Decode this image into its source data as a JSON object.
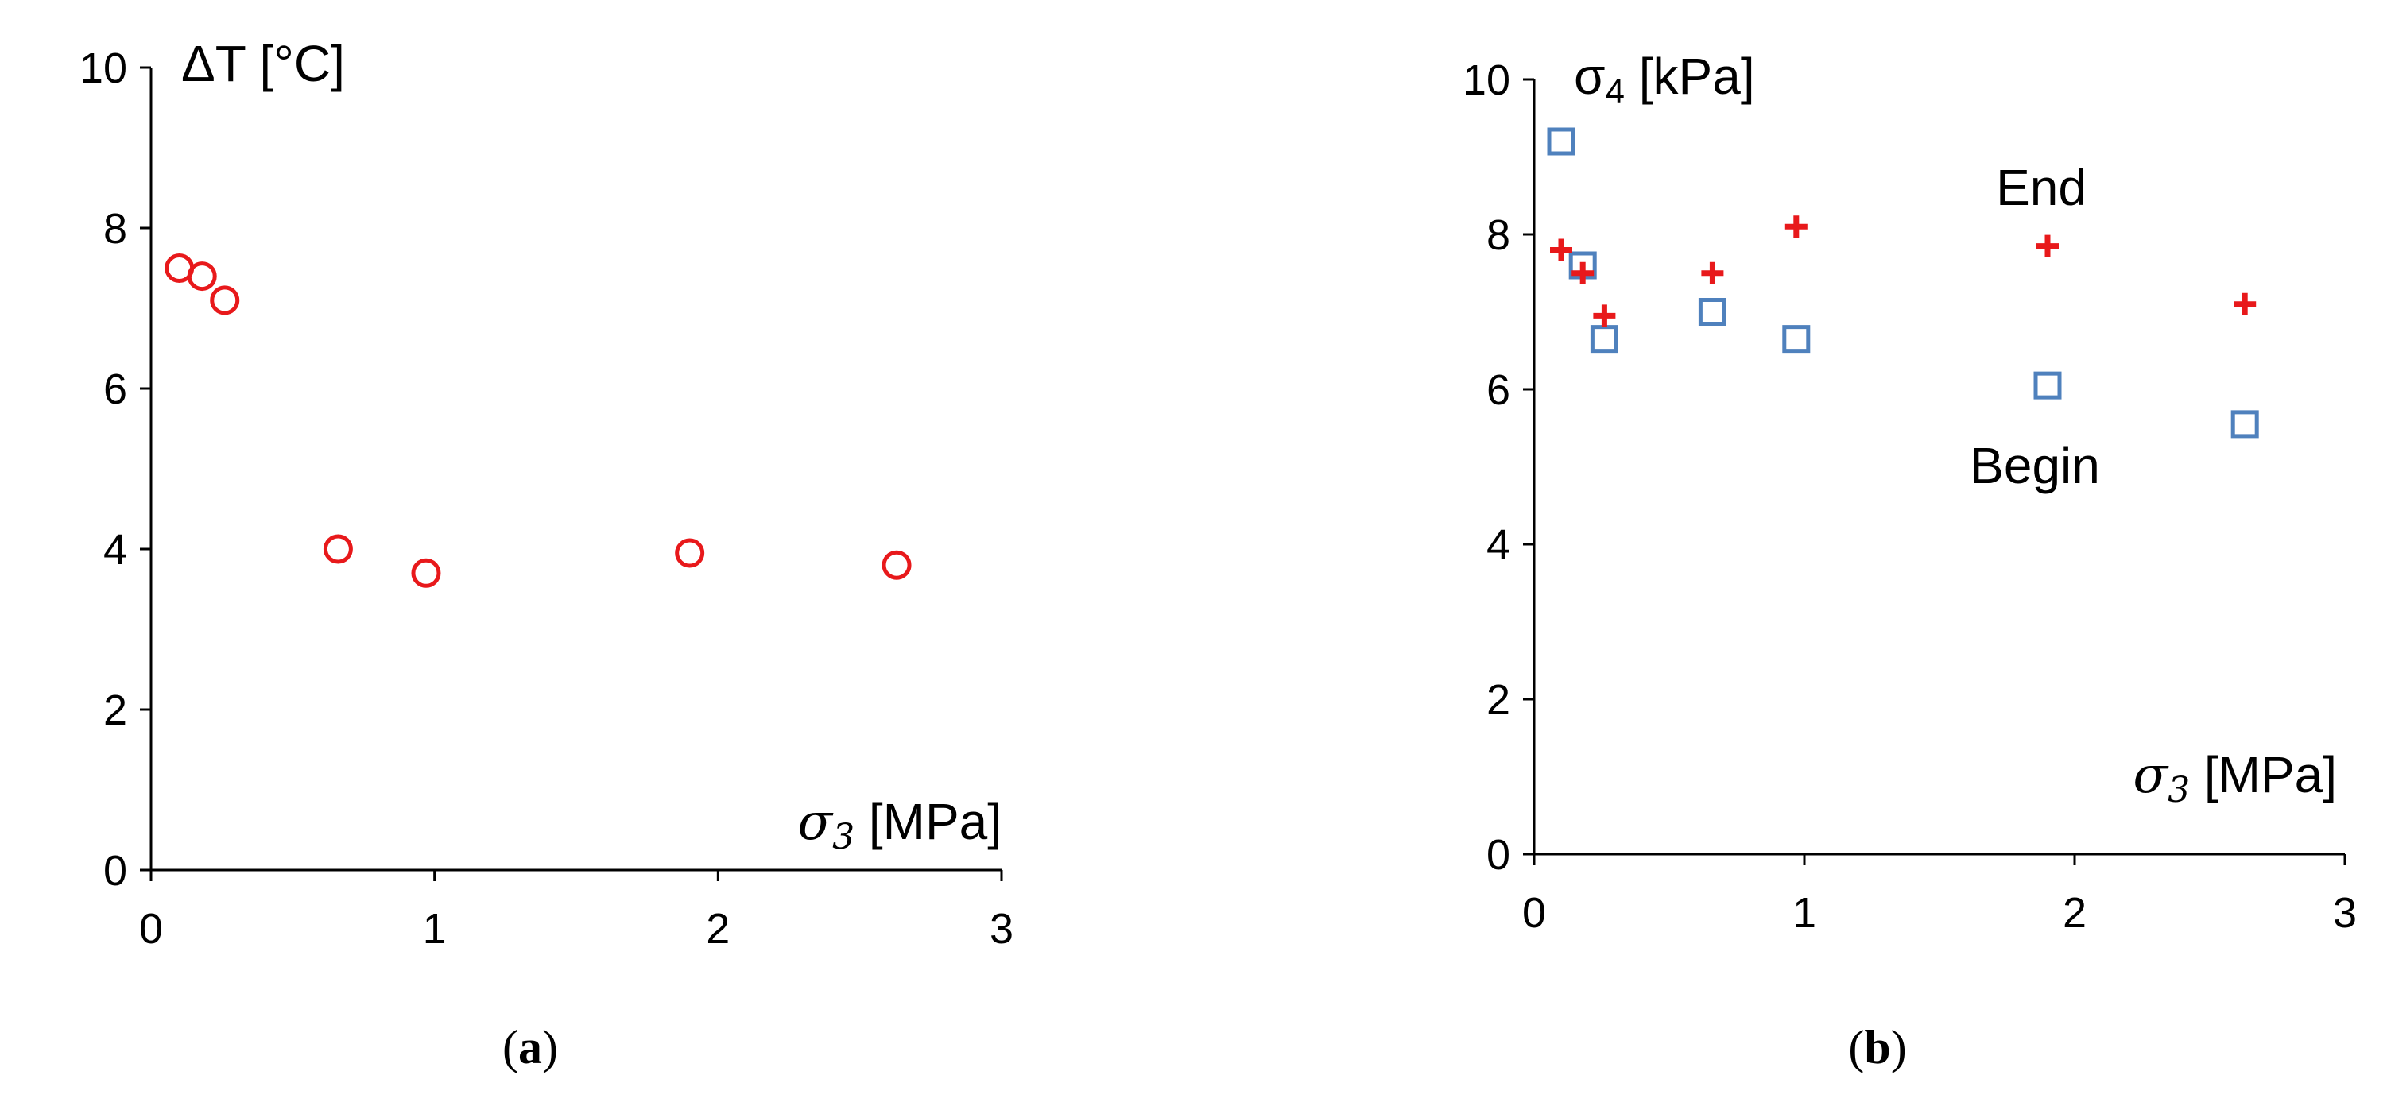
{
  "chart_data": [
    {
      "type": "scatter",
      "panel_label": "a",
      "xlim": [
        0,
        3
      ],
      "ylim": [
        0,
        10
      ],
      "xticks": [
        "0",
        "1",
        "2",
        "3"
      ],
      "yticks": [
        "0",
        "2",
        "4",
        "6",
        "8",
        "10"
      ],
      "xlabel_symbol": "σ",
      "xlabel_sub": "3",
      "xlabel_unit": " [MPa]",
      "ylabel": "ΔT [°C]",
      "grid": false,
      "series": [
        {
          "marker": "circle",
          "color": "#e8191b",
          "points": [
            {
              "x": 0.1,
              "y": 7.5
            },
            {
              "x": 0.18,
              "y": 7.4
            },
            {
              "x": 0.26,
              "y": 7.1
            },
            {
              "x": 0.66,
              "y": 4.0
            },
            {
              "x": 0.97,
              "y": 3.7
            },
            {
              "x": 1.9,
              "y": 3.95
            },
            {
              "x": 2.63,
              "y": 3.8
            }
          ]
        }
      ]
    },
    {
      "type": "scatter",
      "panel_label": "b",
      "xlim": [
        0,
        3
      ],
      "ylim": [
        0,
        10
      ],
      "xticks": [
        "0",
        "1",
        "2",
        "3"
      ],
      "yticks": [
        "0",
        "2",
        "4",
        "6",
        "8",
        "10"
      ],
      "xlabel_symbol": "σ",
      "xlabel_sub": "3",
      "xlabel_unit": " [MPa]",
      "ylabel_symbol": "σ",
      "ylabel_sub": "4",
      "ylabel_unit": " [kPa]",
      "grid": false,
      "series": [
        {
          "name": "Begin",
          "marker": "square",
          "color": "#4f81bd",
          "points": [
            {
              "x": 0.1,
              "y": 9.2
            },
            {
              "x": 0.18,
              "y": 7.6
            },
            {
              "x": 0.26,
              "y": 6.65
            },
            {
              "x": 0.66,
              "y": 7.0
            },
            {
              "x": 0.97,
              "y": 6.65
            },
            {
              "x": 1.9,
              "y": 6.05
            },
            {
              "x": 2.63,
              "y": 5.55
            }
          ]
        },
        {
          "name": "End",
          "marker": "plus",
          "color": "#e8191b",
          "points": [
            {
              "x": 0.1,
              "y": 7.8
            },
            {
              "x": 0.18,
              "y": 7.5
            },
            {
              "x": 0.26,
              "y": 6.95
            },
            {
              "x": 0.66,
              "y": 7.5
            },
            {
              "x": 0.97,
              "y": 8.1
            },
            {
              "x": 1.9,
              "y": 7.85
            },
            {
              "x": 2.63,
              "y": 7.1
            }
          ]
        }
      ]
    }
  ]
}
